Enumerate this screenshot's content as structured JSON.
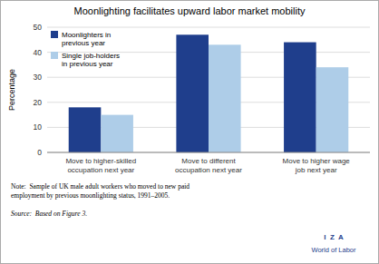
{
  "chart_data": {
    "type": "bar",
    "title": "Moonlighting facilitates upward labor market mobility",
    "y_label": "Percentage",
    "categories": [
      "Move to higher-skilled\noccupation next year",
      "Move to different\noccupation next year",
      "Move to higher wage\njob next year"
    ],
    "series": [
      {
        "name": "Moonlighters in\nprevious year",
        "color": "#1F3E8C",
        "values": [
          18,
          47,
          44
        ]
      },
      {
        "name": "Single job-holders\nin previous year",
        "color": "#AECDE8",
        "values": [
          15,
          43,
          34
        ]
      }
    ],
    "ylim": [
      0,
      50
    ],
    "yticks": [
      0,
      10,
      20,
      30,
      40,
      50
    ],
    "grid": true,
    "legend": "upper left",
    "annotations": [
      "Note:  Sample of UK male adult workers who moved to new paid\nemployment by previous moonlighting status, 1991–2005.",
      "Source:  Based on Figure 3.",
      "I  Z  A",
      "World of Labor"
    ]
  }
}
